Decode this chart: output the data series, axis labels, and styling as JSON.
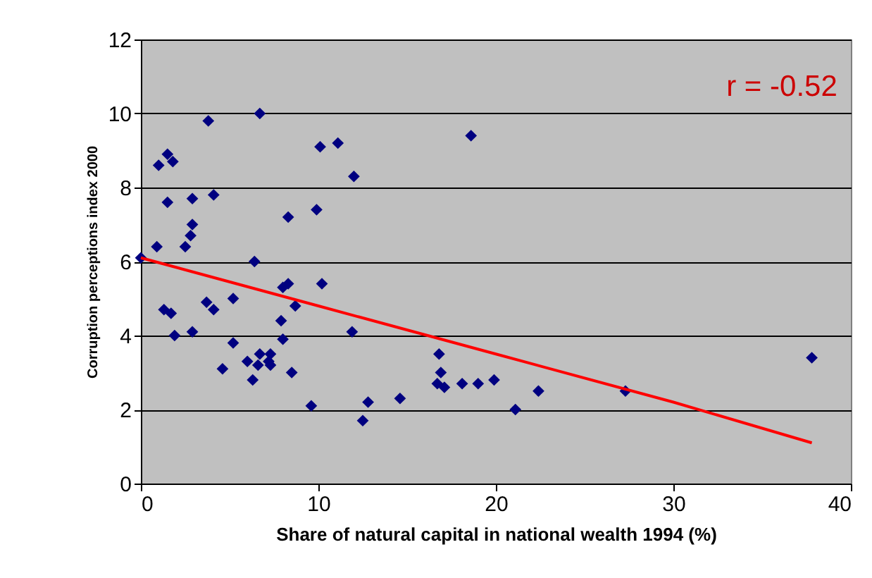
{
  "chart_data": {
    "type": "scatter",
    "xlabel": "Share of natural capital in national wealth 1994 (%)",
    "ylabel": "Corruption perceptions index 2000",
    "annotations": [
      "r = -0.52"
    ],
    "xlim": [
      0,
      40
    ],
    "xticks": [
      0,
      10,
      20,
      30,
      40
    ],
    "ylim": [
      0,
      12
    ],
    "yticks": [
      0,
      2,
      4,
      6,
      8,
      10,
      12
    ],
    "grid": "y",
    "series": [
      {
        "marker": "diamond",
        "color": "#000080",
        "x": [
          0,
          0.9,
          1.0,
          1.5,
          1.8,
          1.5,
          3.8,
          6.7,
          2.9,
          4.1,
          2.9,
          2.8,
          2.5,
          6.4,
          10.1,
          11.1,
          12.0,
          9.9,
          8.3,
          18.6,
          8.3,
          8.0,
          10.2,
          1.3,
          1.7,
          3.7,
          5.2,
          4.1,
          8.7,
          7.9,
          1.9,
          2.9,
          5.2,
          8.0,
          11.9,
          6.7,
          7.3,
          6.0,
          6.6,
          7.3,
          7.2,
          4.6,
          8.5,
          6.3,
          9.6,
          12.8,
          12.5,
          16.8,
          16.9,
          16.7,
          17.1,
          18.1,
          19.0,
          19.9,
          22.4,
          21.1,
          27.3,
          37.8,
          14.6
        ],
        "values": [
          6.1,
          6.4,
          8.6,
          8.9,
          8.7,
          7.6,
          9.8,
          10.0,
          7.7,
          7.8,
          7.0,
          6.7,
          6.4,
          6.0,
          9.1,
          9.2,
          8.3,
          7.4,
          7.2,
          9.4,
          5.4,
          5.3,
          5.4,
          4.7,
          4.6,
          4.9,
          5.0,
          4.7,
          4.8,
          4.4,
          4.0,
          4.1,
          3.8,
          3.9,
          4.1,
          3.5,
          3.5,
          3.3,
          3.2,
          3.2,
          3.3,
          3.1,
          3.0,
          2.8,
          2.1,
          2.2,
          1.7,
          3.5,
          3.0,
          2.7,
          2.6,
          2.7,
          2.7,
          2.8,
          2.5,
          2.0,
          2.5,
          3.4,
          2.3
        ]
      },
      {
        "type": "line",
        "color": "#ff0000",
        "x": [
          0,
          10,
          20,
          30,
          37.8
        ],
        "values": [
          6.1,
          4.8,
          3.5,
          2.2,
          1.1
        ]
      }
    ]
  }
}
